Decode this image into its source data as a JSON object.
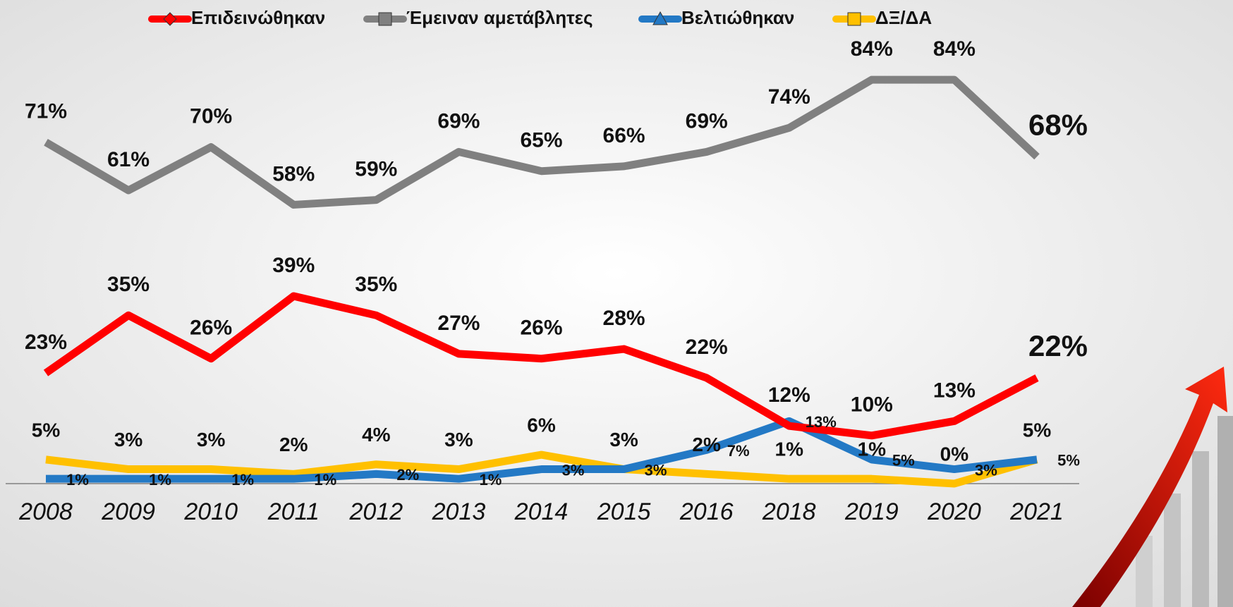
{
  "chart_data": {
    "type": "line",
    "categories": [
      "2008",
      "2009",
      "2010",
      "2011",
      "2012",
      "2013",
      "2014",
      "2015",
      "2016",
      "2018",
      "2019",
      "2020",
      "2021"
    ],
    "ylim": [
      0,
      100
    ],
    "legend": "top",
    "series": [
      {
        "name": "Επιδεινώθηκαν",
        "color": "#ff0000",
        "values": [
          23,
          35,
          26,
          39,
          35,
          27,
          26,
          28,
          22,
          12,
          10,
          13,
          22
        ],
        "value_labels": [
          "23%",
          "35%",
          "26%",
          "39%",
          "35%",
          "27%",
          "26%",
          "28%",
          "22%",
          "12%",
          "10%",
          "13%",
          "22%"
        ]
      },
      {
        "name": "Έμειναν αμετάβλητες",
        "color": "#808080",
        "values": [
          71,
          61,
          70,
          58,
          59,
          69,
          65,
          66,
          69,
          74,
          84,
          84,
          68
        ],
        "value_labels": [
          "71%",
          "61%",
          "70%",
          "58%",
          "59%",
          "69%",
          "65%",
          "66%",
          "69%",
          "74%",
          "84%",
          "84%",
          "68%"
        ]
      },
      {
        "name": "Βελτιώθηκαν",
        "color": "#2379c5",
        "values": [
          1,
          1,
          1,
          1,
          2,
          1,
          3,
          3,
          7,
          13,
          5,
          3,
          5
        ],
        "value_labels": [
          "1%",
          "1%",
          "1%",
          "1%",
          "2%",
          "1%",
          "3%",
          "3%",
          "7%",
          "13%",
          "5%",
          "3%",
          "5%"
        ]
      },
      {
        "name": "ΔΞ/ΔΑ",
        "color": "#ffc000",
        "values": [
          5,
          3,
          3,
          2,
          4,
          3,
          6,
          3,
          2,
          1,
          1,
          0,
          5
        ],
        "value_labels": [
          "5%",
          "3%",
          "3%",
          "2%",
          "4%",
          "3%",
          "6%",
          "3%",
          "2%",
          "1%",
          "1%",
          "0%",
          "5%"
        ]
      }
    ]
  }
}
